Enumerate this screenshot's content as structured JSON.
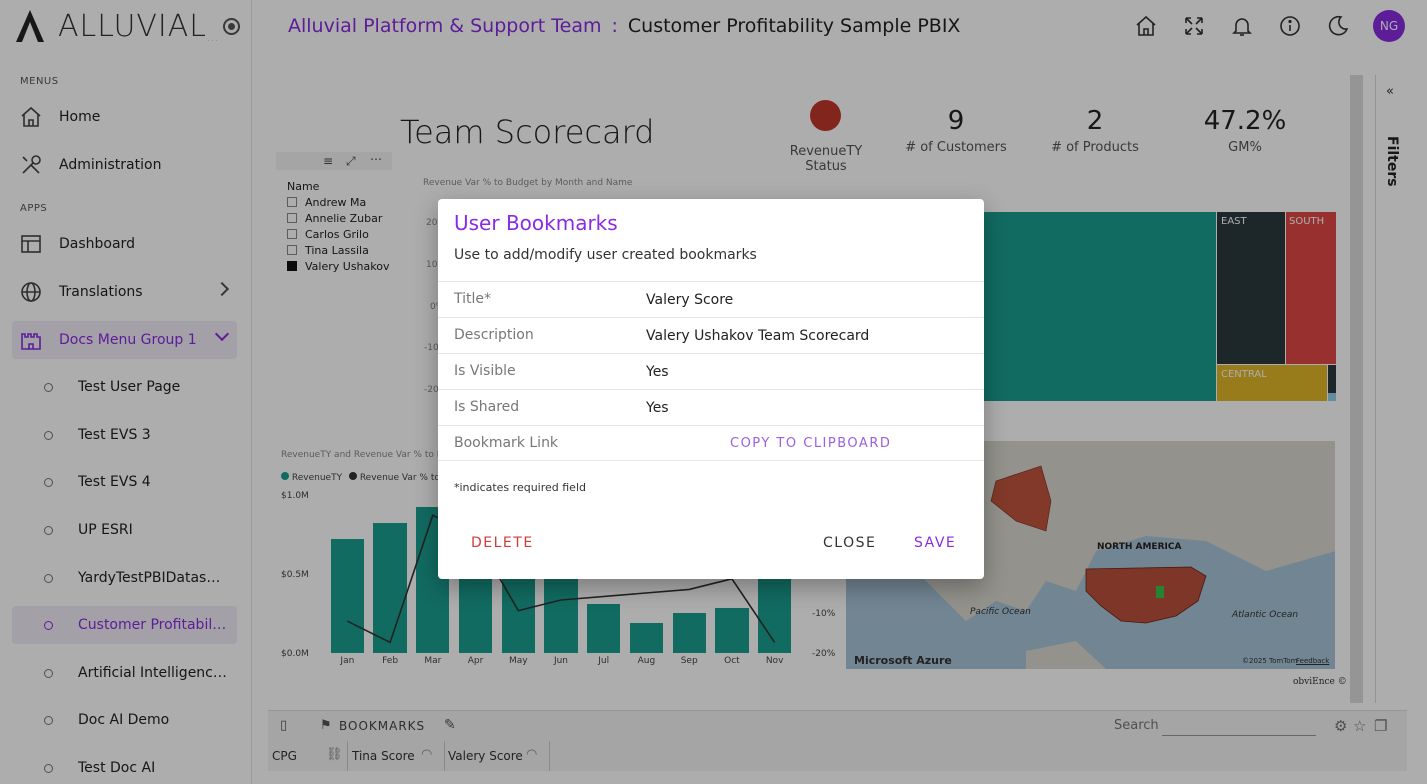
{
  "app": {
    "logo_text": "ALLUVIAL",
    "logo_suffix": "..."
  },
  "sidebar": {
    "menus_label": "MENUS",
    "apps_label": "APPS",
    "menus": [
      {
        "label": "Home",
        "icon": "home-icon"
      },
      {
        "label": "Administration",
        "icon": "tools-icon"
      }
    ],
    "apps": [
      {
        "label": "Dashboard",
        "icon": "layout-icon"
      },
      {
        "label": "Translations",
        "icon": "globe-icon"
      },
      {
        "label": "Docs Menu Group 1",
        "icon": "castle-icon"
      }
    ],
    "sub_items": [
      "Test User Page",
      "Test EVS 3",
      "Test EVS 4",
      "UP ESRI",
      "YardyTestPBIDatasource",
      "Customer Profitability S...",
      "Artificial Intelligence Sa...",
      "Doc AI Demo",
      "Test Doc AI"
    ]
  },
  "header": {
    "team": "Alluvial Platform & Support Team",
    "separator": ":",
    "report": "Customer Profitability Sample PBIX",
    "avatar": "NG"
  },
  "report": {
    "title": "Team Scorecard",
    "kpis": [
      {
        "value": "",
        "label": "RevenueTY Status"
      },
      {
        "value": "9",
        "label": "# of Customers"
      },
      {
        "value": "2",
        "label": "# of Products"
      },
      {
        "value": "47.2%",
        "label": "GM%"
      }
    ],
    "slicer_header": "Name",
    "slicer_names": [
      "Andrew Ma",
      "Annelie Zubar",
      "Carlos Grilo",
      "Tina Lassila",
      "Valery Ushakov"
    ],
    "line_chart_title": "Revenue Var % to Budget by Month and Name",
    "bar_chart_title": "RevenueTY and Revenue Var % to Bu",
    "legend_1": "RevenueTY",
    "legend_2": "Revenue Var % to Budg",
    "tree_labels": [
      "EAST",
      "SOUTH",
      "CENTRAL"
    ],
    "map_label_na": "NORTH AMERICA",
    "map_label_pacific": "Pacific Ocean",
    "map_label_atlantic": "Atlantic Ocean",
    "map_brand": "Microsoft Azure",
    "map_credit": "©2025 TomTom",
    "map_feedback": "Feedback",
    "watermark": "obviEnce ©",
    "filters_label": "Filters"
  },
  "chart_data": {
    "type": "bar",
    "categories": [
      "Jan",
      "Feb",
      "Mar",
      "Apr",
      "May",
      "Jun",
      "Jul",
      "Aug",
      "Sep",
      "Oct",
      "Nov"
    ],
    "series": [
      {
        "name": "RevenueTY",
        "values": [
          0.72,
          0.82,
          0.92,
          0.62,
          0.56,
          0.62,
          0.31,
          0.19,
          0.25,
          0.28,
          0.62
        ]
      },
      {
        "name": "Revenue Var % to Budget",
        "values": [
          -14,
          -18,
          6,
          2,
          -12,
          -10,
          null,
          null,
          -8,
          -6,
          -18
        ]
      }
    ],
    "y_ticks_left": [
      "$1.0M",
      "$0.5M",
      "$0.0M"
    ],
    "y_ticks_right": [
      "-10%",
      "-20%"
    ],
    "line_y_ticks": [
      "20%",
      "10%",
      "0%",
      "-10%",
      "-20%"
    ]
  },
  "footer": {
    "bookmarks_label": "BOOKMARKS",
    "search_label": "Search",
    "tabs": [
      "CPG",
      "Tina Score",
      "Valery Score"
    ]
  },
  "dialog": {
    "title": "User Bookmarks",
    "subtitle": "Use to add/modify user created bookmarks",
    "rows": [
      {
        "key": "Title*",
        "value": "Valery Score"
      },
      {
        "key": "Description",
        "value": "Valery Ushakov Team Scorecard"
      },
      {
        "key": "Is Visible",
        "value": "Yes"
      },
      {
        "key": "Is Shared",
        "value": "Yes"
      },
      {
        "key": "Bookmark Link",
        "value": "COPY TO CLIPBOARD"
      }
    ],
    "note": "*indicates required field",
    "delete_label": "DELETE",
    "close_label": "CLOSE",
    "save_label": "SAVE"
  },
  "colors": {
    "accent": "#8a2be2",
    "teal": "#1a9e8f",
    "danger": "#d33a3a"
  }
}
